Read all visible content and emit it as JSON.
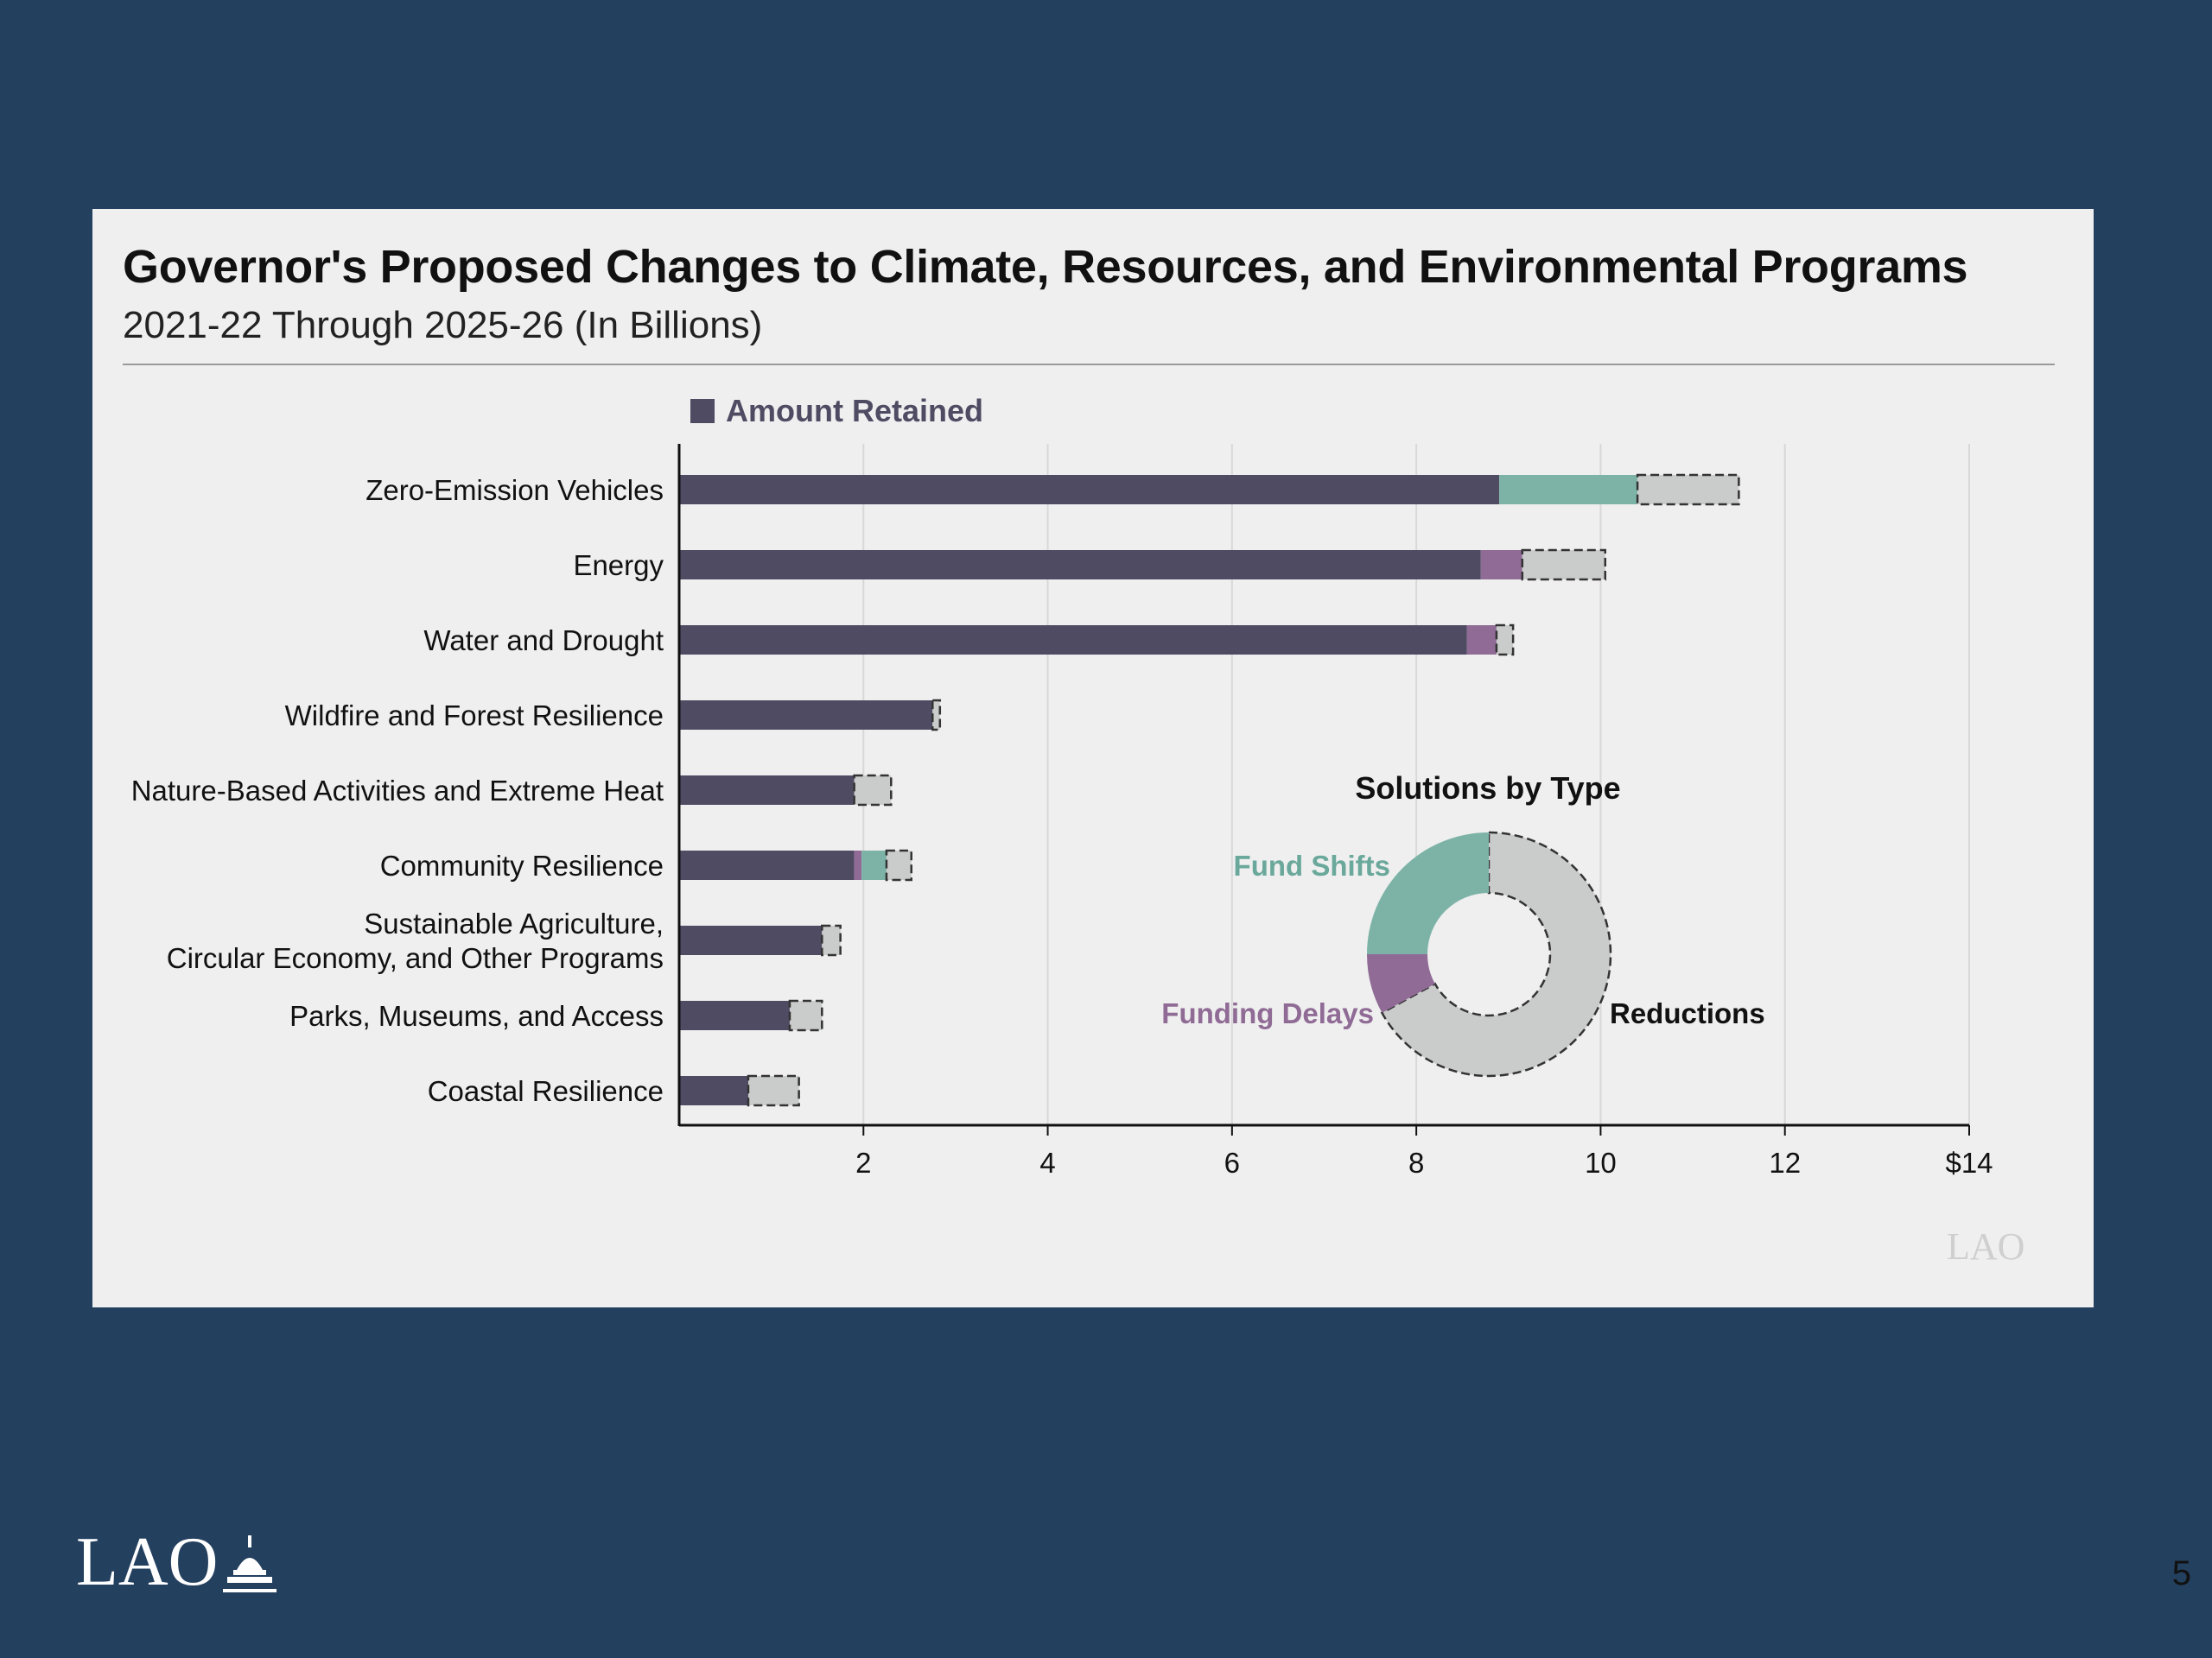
{
  "panel": {
    "title": "Governor's Proposed Changes to Climate, Resources, and Environmental Programs",
    "subtitle": "2021-22 Through 2025-26 (In Billions)"
  },
  "chart_data": [
    {
      "type": "bar",
      "orientation": "horizontal",
      "stacked": true,
      "legend": {
        "label": "Amount Retained",
        "placement": "top"
      },
      "categories": [
        "Zero-Emission Vehicles",
        "Energy",
        "Water and Drought",
        "Wildfire and Forest Resilience",
        "Nature-Based Activities and Extreme Heat",
        "Community Resilience",
        "Sustainable Agriculture,\nCircular Economy, and Other Programs",
        "Parks, Museums, and Access",
        "Coastal Resilience"
      ],
      "series": [
        {
          "name": "Amount Retained",
          "color": "#4f4b63",
          "values": [
            8.9,
            8.7,
            8.55,
            2.75,
            1.9,
            1.9,
            1.55,
            1.2,
            0.75
          ]
        },
        {
          "name": "Funding Delays",
          "color": "#8f6b95",
          "values": [
            0,
            0.45,
            0.32,
            0,
            0,
            0.08,
            0,
            0,
            0
          ]
        },
        {
          "name": "Fund Shifts",
          "color": "#7db3a7",
          "values": [
            1.5,
            0,
            0,
            0,
            0,
            0.27,
            0,
            0,
            0
          ]
        },
        {
          "name": "Reductions",
          "color": "#cacbcb",
          "values": [
            1.1,
            0.9,
            0.18,
            0.08,
            0.4,
            0.27,
            0.2,
            0.35,
            0.55
          ]
        }
      ],
      "xticks": [
        "2",
        "4",
        "6",
        "8",
        "10",
        "12",
        "$14"
      ],
      "xlim": [
        0,
        14
      ],
      "grid": true
    },
    {
      "type": "pie",
      "donut": true,
      "title": "Solutions by Type",
      "labels": [
        "Fund Shifts",
        "Funding Delays",
        "Reductions"
      ],
      "values": [
        0.25,
        0.08,
        0.67
      ],
      "colors": [
        "#7db3a7",
        "#8f6b95",
        "#cacbcb"
      ],
      "label_colors": [
        "#6aa89b",
        "#8f6b95",
        "#111111"
      ]
    }
  ],
  "watermark": "LAO",
  "footer": {
    "logo_text": "LAO",
    "page_number": "5"
  }
}
